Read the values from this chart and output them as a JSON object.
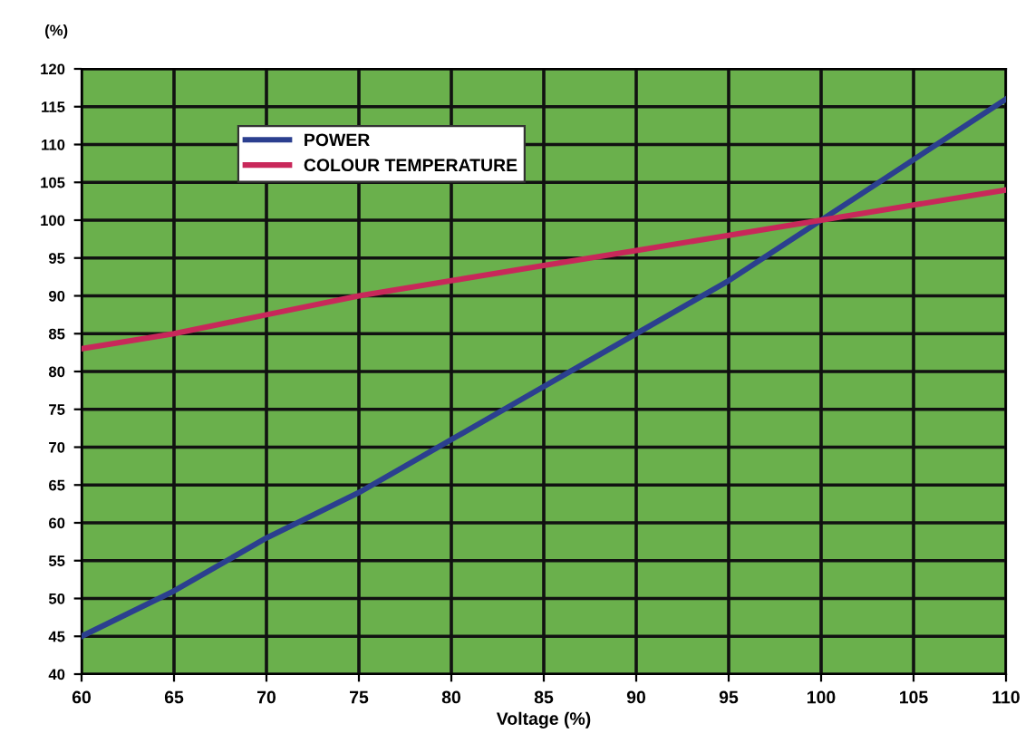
{
  "chart_data": {
    "type": "line",
    "xlabel": "Voltage (%)",
    "ylabel": "(%)",
    "x": [
      60,
      65,
      70,
      75,
      80,
      85,
      90,
      95,
      100,
      105,
      110
    ],
    "series": [
      {
        "name": "POWER",
        "color": "#2b3f8f",
        "values": [
          45,
          51,
          58,
          64,
          71,
          78,
          85,
          92,
          100,
          108,
          116
        ]
      },
      {
        "name": "COLOUR TEMPERATURE",
        "color": "#c8285a",
        "values": [
          83,
          85,
          87.5,
          90,
          92,
          94,
          96,
          98,
          100,
          102,
          104
        ]
      }
    ],
    "xlim": [
      60,
      110
    ],
    "xticks": [
      60,
      65,
      70,
      75,
      80,
      85,
      90,
      95,
      100,
      105,
      110
    ],
    "ylim": [
      40,
      120
    ],
    "yticks": [
      40,
      45,
      50,
      55,
      60,
      65,
      70,
      75,
      80,
      85,
      90,
      95,
      100,
      105,
      110,
      115,
      120
    ],
    "grid": true,
    "legend": "top left",
    "marker": "none",
    "line_style": "solid"
  }
}
